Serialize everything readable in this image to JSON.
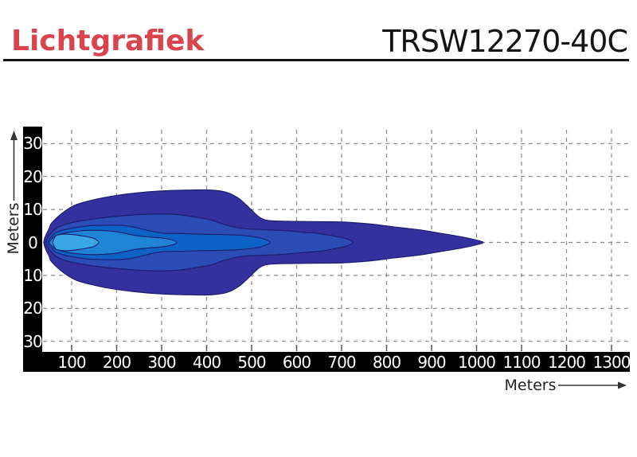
{
  "header": {
    "title": "Lichtgrafiek",
    "product_code": "TRSW12270-40C",
    "accent_color": "#D9444F"
  },
  "chart_data": {
    "type": "area",
    "subtype": "isolux-beam-contours",
    "x_axis": {
      "label": "Meters",
      "ticks": [
        100,
        200,
        300,
        400,
        500,
        600,
        700,
        800,
        900,
        1000,
        1100,
        1200,
        1300
      ],
      "range_m": [
        35,
        1340
      ]
    },
    "y_axis": {
      "label": "Meters",
      "tick_labels": [
        "30",
        "20",
        "10",
        "0",
        "10",
        "20",
        "30"
      ],
      "tick_values": [
        30,
        20,
        10,
        0,
        -10,
        -20,
        -30
      ],
      "range_m": [
        -34,
        35
      ]
    },
    "grid": {
      "style": "dashed",
      "color": "#8A8A8A"
    },
    "contour_outline_color": "#1B1B6B",
    "contours": [
      {
        "name": "beam-level-1-outer",
        "color": "#34309E",
        "reach_m": 1015,
        "max_half_width_m": 15.9,
        "profile_m": [
          [
            38,
            0
          ],
          [
            50,
            4.3
          ],
          [
            56,
            6.0
          ],
          [
            82,
            9.2
          ],
          [
            109,
            11.4
          ],
          [
            144,
            12.8
          ],
          [
            188,
            14.0
          ],
          [
            242,
            15.0
          ],
          [
            295,
            15.6
          ],
          [
            357,
            15.9
          ],
          [
            410,
            15.9
          ],
          [
            445,
            15.2
          ],
          [
            472,
            13.3
          ],
          [
            498,
            10.1
          ],
          [
            519,
            7.5
          ],
          [
            542,
            6.6
          ],
          [
            596,
            6.4
          ],
          [
            649,
            6.3
          ],
          [
            702,
            6.2
          ],
          [
            764,
            5.6
          ],
          [
            817,
            4.7
          ],
          [
            870,
            3.9
          ],
          [
            923,
            2.7
          ],
          [
            967,
            1.7
          ],
          [
            1003,
            0.6
          ],
          [
            1015,
            0
          ]
        ]
      },
      {
        "name": "beam-level-2",
        "color": "#2B4BB5",
        "reach_m": 725,
        "max_half_width_m": 8.6,
        "profile_m": [
          [
            43,
            0
          ],
          [
            60,
            3.6
          ],
          [
            82,
            5.3
          ],
          [
            118,
            6.5
          ],
          [
            171,
            7.5
          ],
          [
            224,
            8.2
          ],
          [
            277,
            8.6
          ],
          [
            330,
            8.5
          ],
          [
            374,
            7.7
          ],
          [
            410,
            6.8
          ],
          [
            436,
            5.6
          ],
          [
            463,
            4.6
          ],
          [
            489,
            4.1
          ],
          [
            525,
            3.9
          ],
          [
            569,
            3.6
          ],
          [
            613,
            3.1
          ],
          [
            649,
            2.7
          ],
          [
            684,
            1.9
          ],
          [
            711,
            1.1
          ],
          [
            725,
            0
          ]
        ]
      },
      {
        "name": "beam-level-3",
        "color": "#0D63C5",
        "reach_m": 541,
        "max_half_width_m": 5.2,
        "profile_m": [
          [
            47,
            0
          ],
          [
            60,
            2.4
          ],
          [
            73,
            3.4
          ],
          [
            100,
            4.3
          ],
          [
            135,
            5.0
          ],
          [
            171,
            5.2
          ],
          [
            206,
            5.2
          ],
          [
            233,
            4.8
          ],
          [
            256,
            4.1
          ],
          [
            277,
            3.4
          ],
          [
            304,
            2.8
          ],
          [
            339,
            2.7
          ],
          [
            383,
            2.5
          ],
          [
            427,
            2.4
          ],
          [
            472,
            2.2
          ],
          [
            507,
            1.7
          ],
          [
            528,
            1.0
          ],
          [
            541,
            0
          ]
        ]
      },
      {
        "name": "beam-level-4",
        "color": "#1F83D6",
        "reach_m": 334,
        "max_half_width_m": 3.7,
        "profile_m": [
          [
            50,
            0
          ],
          [
            60,
            1.6
          ],
          [
            68,
            2.2
          ],
          [
            91,
            3.0
          ],
          [
            118,
            3.5
          ],
          [
            144,
            3.7
          ],
          [
            171,
            3.6
          ],
          [
            197,
            3.3
          ],
          [
            220,
            2.7
          ],
          [
            242,
            2.1
          ],
          [
            268,
            1.7
          ],
          [
            295,
            1.4
          ],
          [
            316,
            1.0
          ],
          [
            334,
            0
          ]
        ]
      },
      {
        "name": "beam-level-5-hotspot",
        "color": "#38A7E4",
        "reach_m": 160,
        "max_half_width_m": 2.5,
        "profile_m": [
          [
            58,
            0
          ],
          [
            64,
            1.8
          ],
          [
            68,
            2.2
          ],
          [
            82,
            2.5
          ],
          [
            100,
            2.4
          ],
          [
            118,
            2.1
          ],
          [
            135,
            1.7
          ],
          [
            150,
            1.2
          ],
          [
            160,
            0
          ]
        ]
      }
    ]
  }
}
